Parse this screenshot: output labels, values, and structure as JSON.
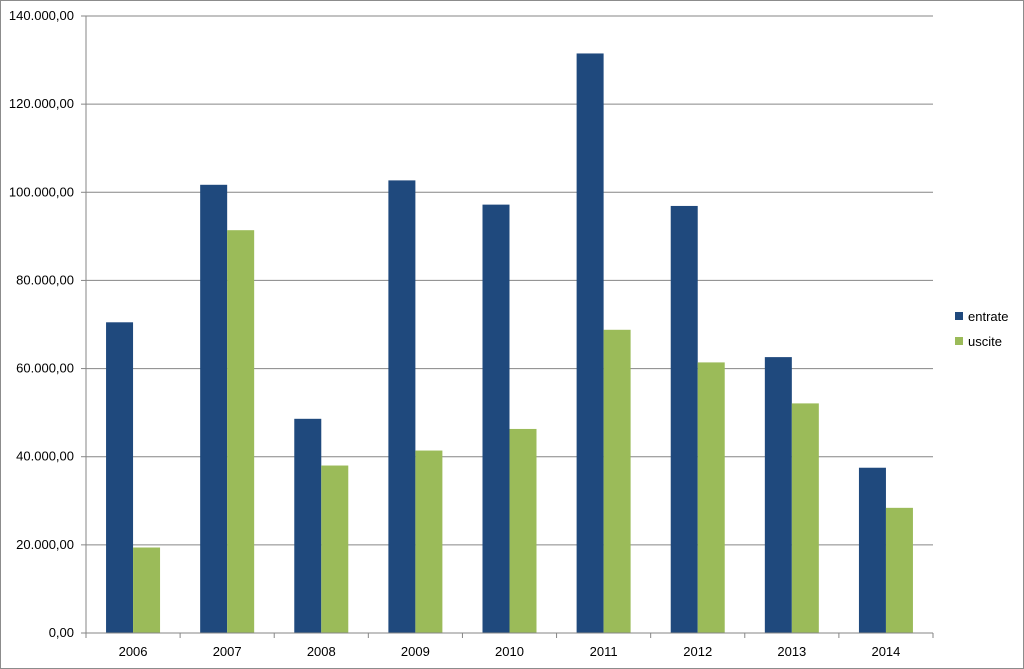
{
  "chart_data": {
    "type": "bar",
    "title": "",
    "xlabel": "",
    "ylabel": "",
    "categories": [
      "2006",
      "2007",
      "2008",
      "2009",
      "2010",
      "2011",
      "2012",
      "2013",
      "2014"
    ],
    "series": [
      {
        "name": "entrate",
        "color": "#1f497d",
        "values": [
          70500,
          101700,
          48600,
          102700,
          97200,
          131500,
          96900,
          62600,
          37500
        ]
      },
      {
        "name": "uscite",
        "color": "#9bbb59",
        "values": [
          19400,
          91400,
          38000,
          41400,
          46300,
          68800,
          61400,
          52100,
          28400
        ]
      }
    ],
    "ylim": [
      0,
      140000
    ],
    "yticks": [
      0,
      20000,
      40000,
      60000,
      80000,
      100000,
      120000,
      140000
    ],
    "ytick_labels": [
      "0,00",
      "20.000,00",
      "40.000,00",
      "60.000,00",
      "80.000,00",
      "100.000,00",
      "120.000,00",
      "140.000,00"
    ],
    "grid": true,
    "legend_position": "right"
  }
}
